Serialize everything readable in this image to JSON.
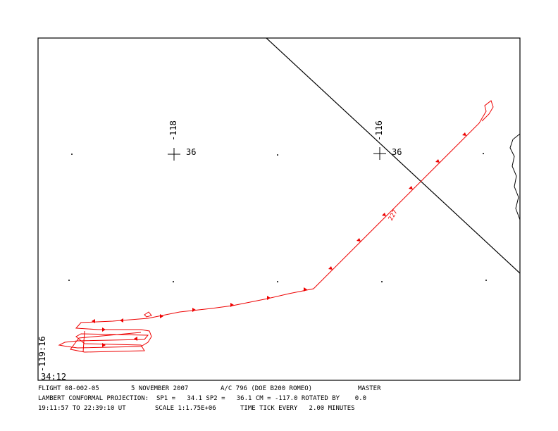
{
  "map": {
    "grid_labels": {
      "lon_left": "-118",
      "lat_left": "36",
      "lon_right": "-116",
      "lat_right": "36"
    },
    "corner_labels": {
      "lon": "-119:16",
      "lat": "34:12"
    },
    "track_label": "227",
    "footer": {
      "flight": "FLIGHT 08-002-05",
      "date": "5 NOVEMBER 2007",
      "aircraft": "A/C 796 (DOE B200 ROMEO)",
      "mode": "MASTER",
      "projection": "LAMBERT CONFORMAL PROJECTION:  SP1 =   34.1 SP2 =   36.1 CM = -117.0 ROTATED BY    0.0",
      "time_range": "19:11:57 TO 22:39:10 UT",
      "scale": "SCALE 1:1.75E+06",
      "time_tick": "TIME TICK EVERY   2.00 MINUTES"
    }
  }
}
